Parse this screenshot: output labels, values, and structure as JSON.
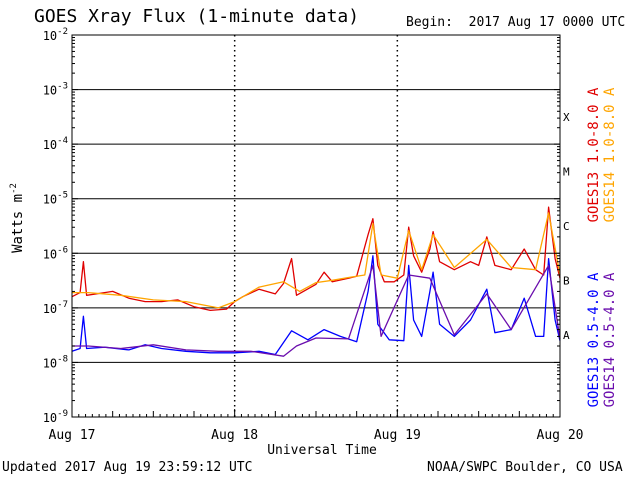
{
  "header": {
    "title": "GOES Xray Flux (1-minute data)",
    "begin": "Begin:  2017 Aug 17 0000 UTC"
  },
  "footer": {
    "updated": "Updated 2017 Aug 19 23:59:12 UTC",
    "credit": "NOAA/SWPC Boulder, CO USA"
  },
  "chart_data": {
    "type": "line",
    "title": "GOES Xray Flux (1-minute data)",
    "xlabel": "Universal Time",
    "ylabel": "Watts m",
    "ylabel_exponent": "-2",
    "yscale": "log",
    "ylim_exponents": [
      -9,
      -2
    ],
    "y_ticks": [
      {
        "base": "10",
        "exp": "-2",
        "value": 0.01
      },
      {
        "base": "10",
        "exp": "-3",
        "value": 0.001
      },
      {
        "base": "10",
        "exp": "-4",
        "value": 0.0001
      },
      {
        "base": "10",
        "exp": "-5",
        "value": 1e-05
      },
      {
        "base": "10",
        "exp": "-6",
        "value": 1e-06
      },
      {
        "base": "10",
        "exp": "-7",
        "value": 1e-07
      },
      {
        "base": "10",
        "exp": "-8",
        "value": 1e-08
      },
      {
        "base": "10",
        "exp": "-9",
        "value": 1e-09
      }
    ],
    "x_ticks": [
      "Aug 17",
      "Aug 18",
      "Aug 19",
      "Aug 20"
    ],
    "xlim_days": [
      0,
      3
    ],
    "flare_classes": [
      {
        "label": "X",
        "value": 0.0001
      },
      {
        "label": "M",
        "value": 1e-05
      },
      {
        "label": "C",
        "value": 1e-06
      },
      {
        "label": "B",
        "value": 1e-07
      },
      {
        "label": "A",
        "value": 1e-08
      }
    ],
    "grid": true,
    "legend_position": "right-vertical",
    "series": [
      {
        "name": "GOES13 1.0-8.0 A",
        "color": "#e00000",
        "points": [
          [
            0,
            1.6e-07
          ],
          [
            0.05,
            1.9e-07
          ],
          [
            0.07,
            7e-07
          ],
          [
            0.09,
            1.7e-07
          ],
          [
            0.15,
            1.8e-07
          ],
          [
            0.25,
            2e-07
          ],
          [
            0.35,
            1.5e-07
          ],
          [
            0.45,
            1.3e-07
          ],
          [
            0.55,
            1.3e-07
          ],
          [
            0.65,
            1.4e-07
          ],
          [
            0.75,
            1.05e-07
          ],
          [
            0.85,
            9e-08
          ],
          [
            0.95,
            9.5e-08
          ],
          [
            1.0,
            1.3e-07
          ],
          [
            1.05,
            1.6e-07
          ],
          [
            1.15,
            2.2e-07
          ],
          [
            1.25,
            1.8e-07
          ],
          [
            1.3,
            2.8e-07
          ],
          [
            1.35,
            8e-07
          ],
          [
            1.38,
            1.7e-07
          ],
          [
            1.5,
            2.7e-07
          ],
          [
            1.55,
            4.5e-07
          ],
          [
            1.6,
            3e-07
          ],
          [
            1.7,
            3.5e-07
          ],
          [
            1.75,
            3.8e-07
          ],
          [
            1.82,
            2.2e-06
          ],
          [
            1.85,
            4.3e-06
          ],
          [
            1.88,
            6e-07
          ],
          [
            1.92,
            3e-07
          ],
          [
            1.98,
            3e-07
          ],
          [
            2.04,
            4e-07
          ],
          [
            2.07,
            3e-06
          ],
          [
            2.1,
            9e-07
          ],
          [
            2.15,
            4.5e-07
          ],
          [
            2.2,
            1.2e-06
          ],
          [
            2.22,
            2.5e-06
          ],
          [
            2.26,
            7e-07
          ],
          [
            2.35,
            5e-07
          ],
          [
            2.45,
            7e-07
          ],
          [
            2.5,
            6e-07
          ],
          [
            2.55,
            2e-06
          ],
          [
            2.6,
            6e-07
          ],
          [
            2.7,
            5e-07
          ],
          [
            2.78,
            1.2e-06
          ],
          [
            2.85,
            5e-07
          ],
          [
            2.9,
            4e-07
          ],
          [
            2.93,
            7e-06
          ],
          [
            2.97,
            8e-07
          ],
          [
            3.0,
            3.5e-07
          ]
        ]
      },
      {
        "name": "GOES14 1.0-8.0 A",
        "color": "#ffa500",
        "points": [
          [
            0,
            1.9e-07
          ],
          [
            0.1,
            1.9e-07
          ],
          [
            0.3,
            1.7e-07
          ],
          [
            0.5,
            1.4e-07
          ],
          [
            0.7,
            1.3e-07
          ],
          [
            0.9,
            1e-07
          ],
          [
            1.0,
            1.3e-07
          ],
          [
            1.15,
            2.4e-07
          ],
          [
            1.3,
            3e-07
          ],
          [
            1.4,
            2e-07
          ],
          [
            1.5,
            2.9e-07
          ],
          [
            1.6,
            3.2e-07
          ],
          [
            1.7,
            3.6e-07
          ],
          [
            1.8,
            4e-07
          ],
          [
            1.85,
            3.5e-06
          ],
          [
            1.9,
            4e-07
          ],
          [
            2.0,
            3.5e-07
          ],
          [
            2.07,
            2.6e-06
          ],
          [
            2.15,
            5e-07
          ],
          [
            2.22,
            2.2e-06
          ],
          [
            2.35,
            5.5e-07
          ],
          [
            2.55,
            1.8e-06
          ],
          [
            2.7,
            5.5e-07
          ],
          [
            2.85,
            5e-07
          ],
          [
            2.93,
            5.5e-06
          ],
          [
            3.0,
            4e-07
          ]
        ]
      },
      {
        "name": "GOES13 0.5-4.0 A",
        "color": "#0000ff",
        "points": [
          [
            0,
            1.6e-08
          ],
          [
            0.05,
            1.8e-08
          ],
          [
            0.07,
            7e-08
          ],
          [
            0.09,
            1.8e-08
          ],
          [
            0.2,
            1.9e-08
          ],
          [
            0.35,
            1.7e-08
          ],
          [
            0.45,
            2.1e-08
          ],
          [
            0.55,
            1.8e-08
          ],
          [
            0.7,
            1.6e-08
          ],
          [
            0.85,
            1.5e-08
          ],
          [
            1.0,
            1.5e-08
          ],
          [
            1.15,
            1.6e-08
          ],
          [
            1.25,
            1.4e-08
          ],
          [
            1.35,
            3.8e-08
          ],
          [
            1.45,
            2.6e-08
          ],
          [
            1.55,
            4e-08
          ],
          [
            1.65,
            3e-08
          ],
          [
            1.75,
            2.4e-08
          ],
          [
            1.82,
            2e-07
          ],
          [
            1.85,
            9e-07
          ],
          [
            1.88,
            5e-08
          ],
          [
            1.95,
            2.6e-08
          ],
          [
            2.04,
            2.5e-08
          ],
          [
            2.07,
            6e-07
          ],
          [
            2.1,
            6e-08
          ],
          [
            2.15,
            3e-08
          ],
          [
            2.2,
            2e-07
          ],
          [
            2.22,
            4.5e-07
          ],
          [
            2.26,
            5e-08
          ],
          [
            2.35,
            3e-08
          ],
          [
            2.45,
            6e-08
          ],
          [
            2.55,
            2.2e-07
          ],
          [
            2.6,
            3.5e-08
          ],
          [
            2.7,
            4e-08
          ],
          [
            2.78,
            1.5e-07
          ],
          [
            2.85,
            3e-08
          ],
          [
            2.9,
            3e-08
          ],
          [
            2.93,
            8e-07
          ],
          [
            2.97,
            6e-08
          ],
          [
            3.0,
            2.5e-08
          ]
        ]
      },
      {
        "name": "GOES14 0.5-4.0 A",
        "color": "#6a0dad",
        "points": [
          [
            0,
            2e-08
          ],
          [
            0.1,
            2e-08
          ],
          [
            0.3,
            1.8e-08
          ],
          [
            0.5,
            2.1e-08
          ],
          [
            0.7,
            1.7e-08
          ],
          [
            0.9,
            1.6e-08
          ],
          [
            1.1,
            1.6e-08
          ],
          [
            1.3,
            1.3e-08
          ],
          [
            1.38,
            2e-08
          ],
          [
            1.5,
            2.8e-08
          ],
          [
            1.7,
            2.7e-08
          ],
          [
            1.85,
            6e-07
          ],
          [
            1.9,
            3e-08
          ],
          [
            2.07,
            4e-07
          ],
          [
            2.2,
            3.5e-07
          ],
          [
            2.35,
            3.2e-08
          ],
          [
            2.55,
            1.8e-07
          ],
          [
            2.7,
            4e-08
          ],
          [
            2.93,
            6e-07
          ],
          [
            3.0,
            2.7e-08
          ]
        ]
      }
    ]
  }
}
